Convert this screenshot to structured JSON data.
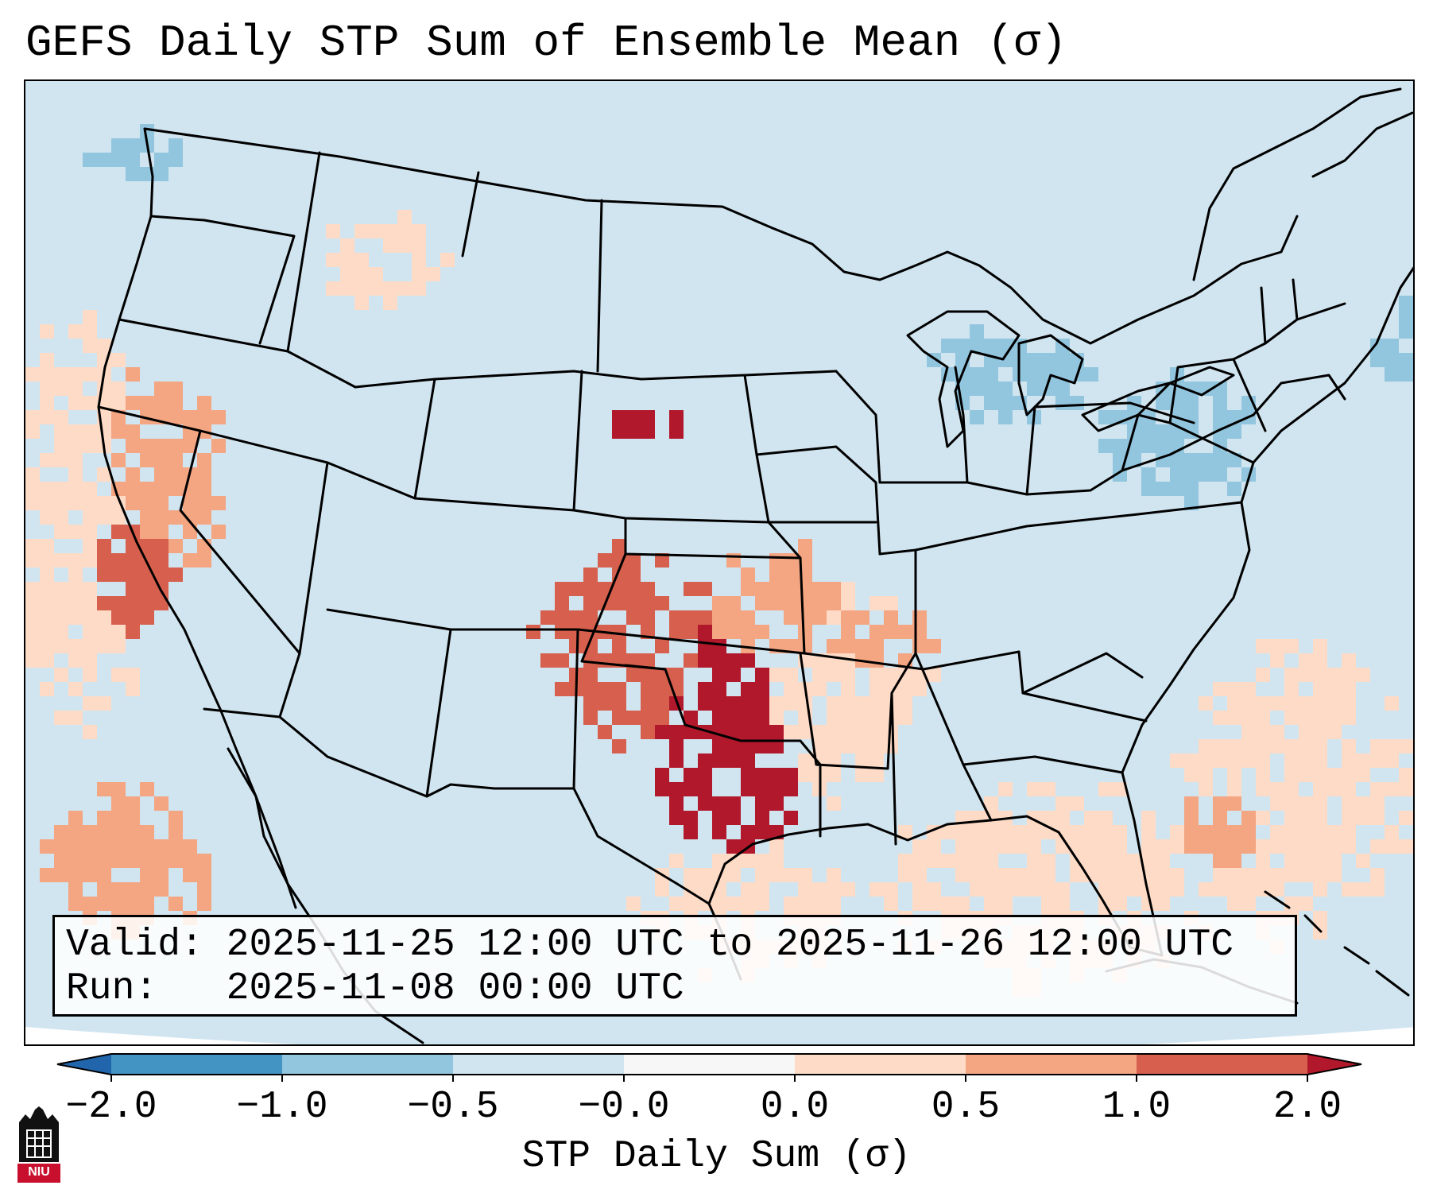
{
  "title": "GEFS Daily STP Sum of Ensemble Mean (σ)",
  "valid_label": "Valid:",
  "valid_value": "2025-11-25 12:00 UTC to 2025-11-26 12:00 UTC",
  "run_label": "Run:",
  "run_value": "2025-11-08 00:00 UTC",
  "colorbar": {
    "title": "STP Daily Sum (σ)",
    "tick_labels": [
      "−2.0",
      "−1.0",
      "−0.5",
      "−0.0",
      "0.0",
      "0.5",
      "1.0",
      "2.0"
    ],
    "segments": [
      {
        "from": -2.0,
        "to": -1.0,
        "color": "#4393c3"
      },
      {
        "from": -1.0,
        "to": -0.5,
        "color": "#92c5de"
      },
      {
        "from": -0.5,
        "to": -0.0,
        "color": "#d1e5f0"
      },
      {
        "from": -0.0,
        "to": 0.0,
        "color": "#f7f7f7"
      },
      {
        "from": 0.0,
        "to": 0.5,
        "color": "#fddbc7"
      },
      {
        "from": 0.5,
        "to": 1.0,
        "color": "#f4a582"
      },
      {
        "from": 1.0,
        "to": 2.0,
        "color": "#d6604d"
      }
    ],
    "under_color": "#2166ac",
    "over_color": "#b2182b"
  },
  "logo": {
    "text": "NIU",
    "icon": "niu-tower-icon",
    "color": "#c8102e"
  }
}
